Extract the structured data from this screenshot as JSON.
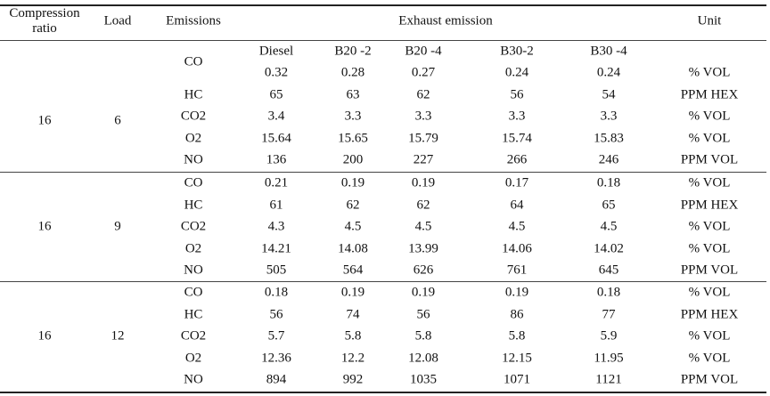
{
  "header": {
    "compression_ratio": "Compression ratio",
    "load": "Load",
    "emissions": "Emissions",
    "exhaust_emission": "Exhaust emission",
    "unit": "Unit"
  },
  "fuels": [
    "Diesel",
    "B20 -2",
    "B20 -4",
    "B30-2",
    "B30 -4"
  ],
  "groups": [
    {
      "compression_ratio": "16",
      "load": "6",
      "rows": [
        {
          "emission": "CO",
          "values": [
            "0.32",
            "0.28",
            "0.27",
            "0.24",
            "0.24"
          ],
          "unit": "% VOL"
        },
        {
          "emission": "HC",
          "values": [
            "65",
            "63",
            "62",
            "56",
            "54"
          ],
          "unit": "PPM HEX"
        },
        {
          "emission": "CO2",
          "values": [
            "3.4",
            "3.3",
            "3.3",
            "3.3",
            "3.3"
          ],
          "unit": "% VOL"
        },
        {
          "emission": "O2",
          "values": [
            "15.64",
            "15.65",
            "15.79",
            "15.74",
            "15.83"
          ],
          "unit": "% VOL"
        },
        {
          "emission": "NO",
          "values": [
            "136",
            "200",
            "227",
            "266",
            "246"
          ],
          "unit": "PPM VOL"
        }
      ]
    },
    {
      "compression_ratio": "16",
      "load": "9",
      "rows": [
        {
          "emission": "CO",
          "values": [
            "0.21",
            "0.19",
            "0.19",
            "0.17",
            "0.18"
          ],
          "unit": "% VOL"
        },
        {
          "emission": "HC",
          "values": [
            "61",
            "62",
            "62",
            "64",
            "65"
          ],
          "unit": "PPM HEX"
        },
        {
          "emission": "CO2",
          "values": [
            "4.3",
            "4.5",
            "4.5",
            "4.5",
            "4.5"
          ],
          "unit": "% VOL"
        },
        {
          "emission": "O2",
          "values": [
            "14.21",
            "14.08",
            "13.99",
            "14.06",
            "14.02"
          ],
          "unit": "% VOL"
        },
        {
          "emission": "NO",
          "values": [
            "505",
            "564",
            "626",
            "761",
            "645"
          ],
          "unit": "PPM VOL"
        }
      ]
    },
    {
      "compression_ratio": "16",
      "load": "12",
      "rows": [
        {
          "emission": "CO",
          "values": [
            "0.18",
            "0.19",
            "0.19",
            "0.19",
            "0.18"
          ],
          "unit": "% VOL"
        },
        {
          "emission": "HC",
          "values": [
            "56",
            "74",
            "56",
            "86",
            "77"
          ],
          "unit": "PPM HEX"
        },
        {
          "emission": "CO2",
          "values": [
            "5.7",
            "5.8",
            "5.8",
            "5.8",
            "5.9"
          ],
          "unit": "% VOL"
        },
        {
          "emission": "O2",
          "values": [
            "12.36",
            "12.2",
            "12.08",
            "12.15",
            "11.95"
          ],
          "unit": "% VOL"
        },
        {
          "emission": "NO",
          "values": [
            "894",
            "992",
            "1035",
            "1071",
            "1121"
          ],
          "unit": "PPM VOL"
        }
      ]
    }
  ]
}
